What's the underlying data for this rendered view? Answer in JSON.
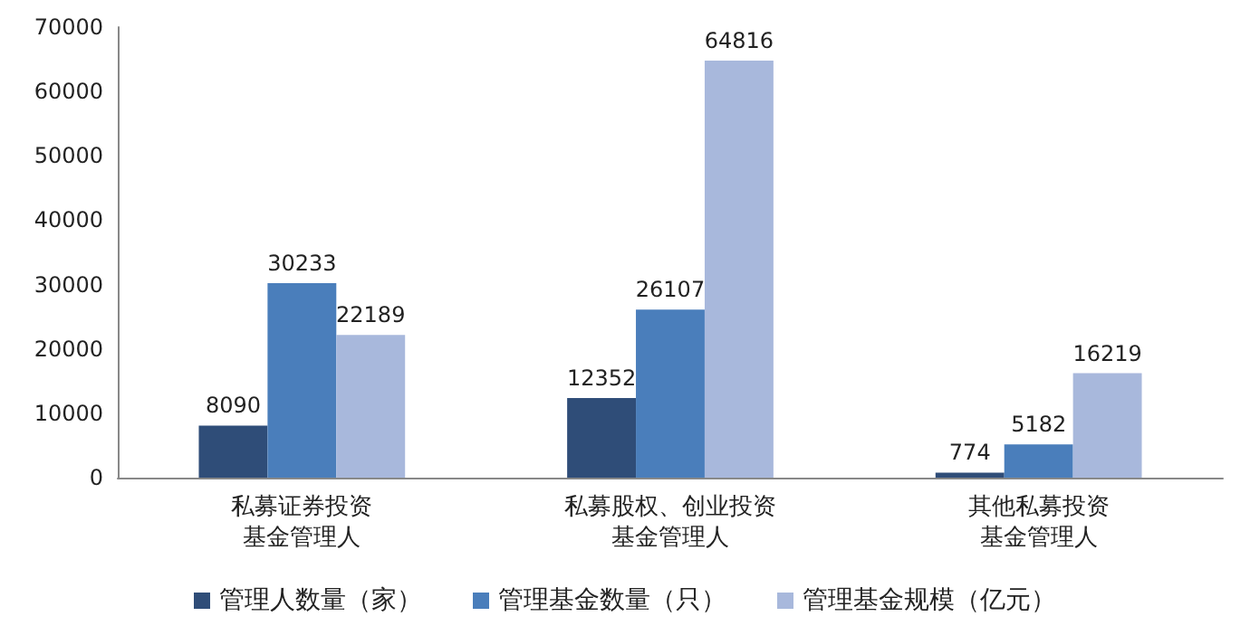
{
  "chart_data": {
    "type": "bar",
    "categories": [
      "私募证券投资基金管理人",
      "私募股权、创业投资基金管理人",
      "其他私募投资基金管理人"
    ],
    "series": [
      {
        "name": "管理人数量（家）",
        "color": "#2f4d78",
        "values": [
          8090,
          12352,
          774
        ]
      },
      {
        "name": "管理基金数量（只）",
        "color": "#4a7ebb",
        "values": [
          30233,
          26107,
          5182
        ]
      },
      {
        "name": "管理基金规模（亿元）",
        "color": "#a8b8dc",
        "values": [
          22189,
          64816,
          16219
        ]
      }
    ],
    "ylim": [
      0,
      70000
    ],
    "yticks": [
      0,
      10000,
      20000,
      30000,
      40000,
      50000,
      60000,
      70000
    ],
    "grid": false,
    "legend": "bottom",
    "data_labels": true
  }
}
